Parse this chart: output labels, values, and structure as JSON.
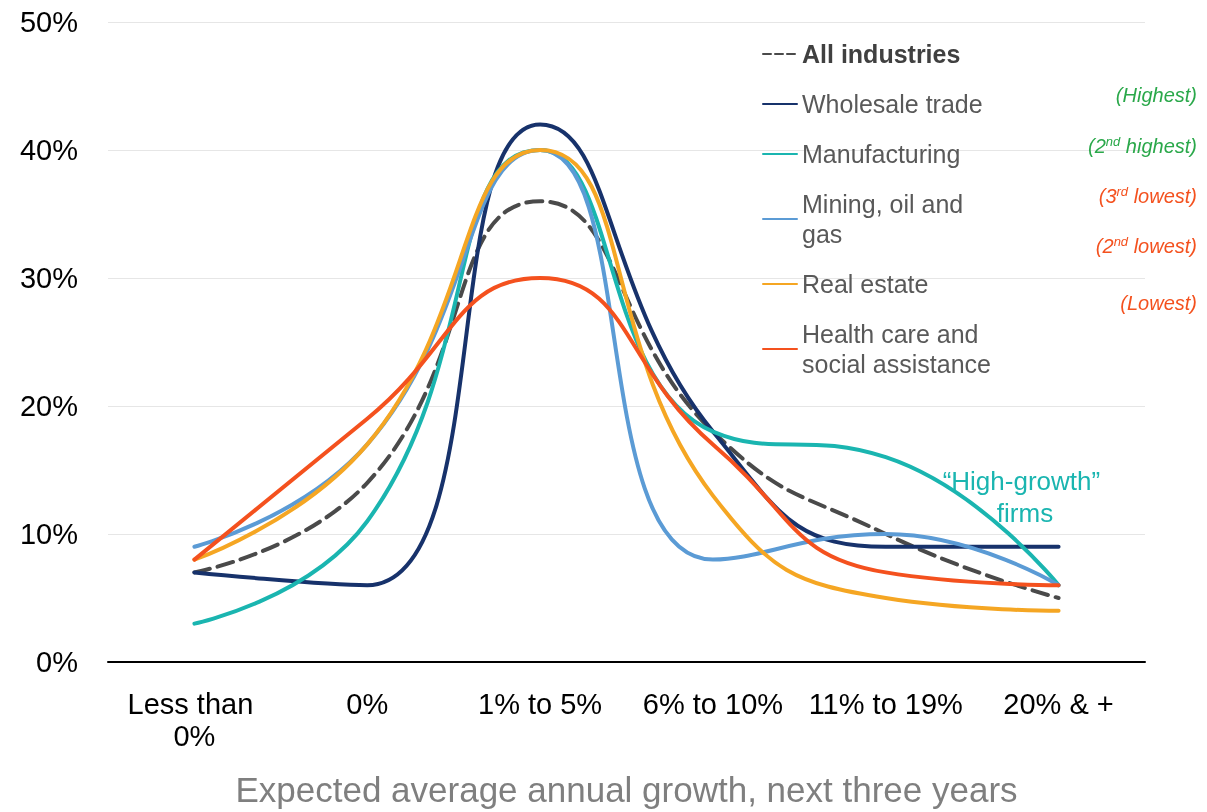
{
  "chart_data": {
    "type": "line",
    "xlabel": "Expected average annual growth, next three years",
    "categories": [
      "Less than 0%",
      "0%",
      "1% to 5%",
      "6% to 10%",
      "11% to 19%",
      "20% & +"
    ],
    "series": [
      {
        "name": "All industries",
        "color": "#4a4a4a",
        "line_style": "dashed",
        "values": [
          7,
          14,
          36,
          18,
          10,
          5
        ]
      },
      {
        "name": "Wholesale trade",
        "color": "#17326b",
        "values": [
          7,
          6,
          42,
          18,
          9,
          9
        ]
      },
      {
        "name": "Manufacturing",
        "color": "#1ab5b0",
        "values": [
          3,
          11,
          40,
          18,
          16,
          6
        ]
      },
      {
        "name": "Mining, oil and gas",
        "color": "#5b9bd5",
        "values": [
          9,
          17,
          40,
          8,
          10,
          6
        ]
      },
      {
        "name": "Real estate",
        "color": "#f5a623",
        "values": [
          8,
          17,
          40,
          13,
          5,
          4
        ]
      },
      {
        "name": "Health care and social assistance",
        "color": "#f4511e",
        "values": [
          8,
          19,
          30,
          17,
          7,
          6
        ]
      }
    ],
    "ylim": [
      0,
      50
    ],
    "yticks": [
      {
        "value": 0,
        "label": "0%"
      },
      {
        "value": 10,
        "label": "10%"
      },
      {
        "value": 20,
        "label": "20%"
      },
      {
        "value": 30,
        "label": "30%"
      },
      {
        "value": 40,
        "label": "40%"
      },
      {
        "value": 50,
        "label": "50%"
      }
    ],
    "grid": "y",
    "legend": "top right",
    "marker": "none",
    "line_style": "solid",
    "annotations": [
      "(Highest)",
      "(2$^{nd}$ highest)",
      "(3$^{rd}$ lowest)",
      "(2$^{nd}$ lowest)",
      "(Lowest)",
      "“High-growth” firms"
    ]
  }
}
